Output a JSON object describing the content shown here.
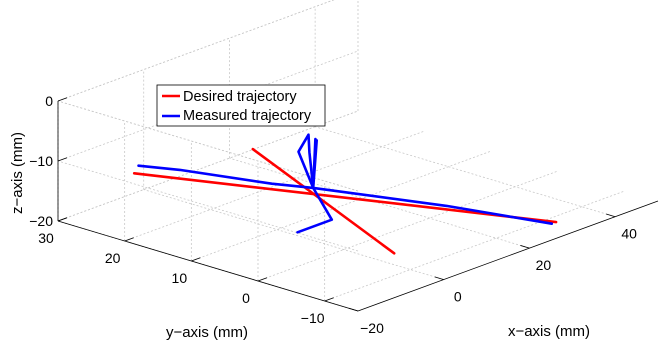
{
  "chart_data": {
    "type": "line",
    "projection": "3d",
    "grid": true,
    "legend_placement": "top-left",
    "xlabel": "x−axis (mm)",
    "ylabel": "y−axis (mm)",
    "zlabel": "z−axis (mm)",
    "xlim": [
      -20,
      50
    ],
    "ylim": [
      -15,
      30
    ],
    "zlim": [
      -20,
      0
    ],
    "x_ticks": [
      "−20",
      "0",
      "20",
      "40"
    ],
    "y_ticks": [
      "−10",
      "0",
      "10",
      "20",
      "30"
    ],
    "z_ticks": [
      "−20",
      "−10",
      "0"
    ],
    "series": [
      {
        "name": "Desired trajectory",
        "color": "#ff0000",
        "segments": [
          [
            [
              -10,
              25,
              -13
            ],
            [
              34,
              -10,
              -21
            ]
          ],
          [
            [
              4,
              -5,
              -20
            ],
            [
              13,
              22,
              -14
            ]
          ]
        ]
      },
      {
        "name": "Measured trajectory",
        "color": "#0000ff",
        "segments": [
          [
            [
              -9,
              25,
              -12
            ],
            [
              -4,
              22,
              -13
            ],
            [
              5,
              14,
              -15
            ],
            [
              10,
              11,
              -16
            ],
            [
              24,
              0,
              -19
            ],
            [
              33,
              -10,
              -21
            ]
          ],
          [
            [
              -3,
              5,
              -18
            ],
            [
              5,
              5,
              -18
            ],
            [
              10,
              11,
              -16
            ],
            [
              20,
              18,
              -15
            ],
            [
              26,
              22,
              -15
            ],
            [
              19,
              19,
              -15
            ],
            [
              10,
              11,
              -16
            ]
          ],
          [
            [
              10.5,
              11,
              -8
            ],
            [
              10,
              11,
              -16
            ],
            [
              10.8,
              11,
              -8.3
            ]
          ]
        ]
      }
    ]
  }
}
